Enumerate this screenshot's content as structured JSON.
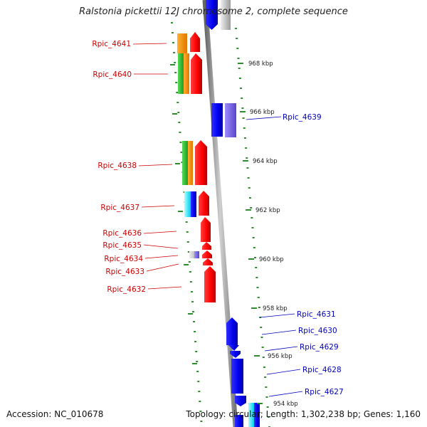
{
  "title": "Ralstonia pickettii 12J chromosome 2, complete sequence",
  "footer": {
    "accession": "Accession: NC_010678",
    "topology": "Topology: circular; Length: 1,302,238 bp; Genes: 1,160"
  },
  "kbp_ticks": [
    "968 kbp",
    "966 kbp",
    "964 kbp",
    "962 kbp",
    "960 kbp",
    "958 kbp",
    "956 kbp",
    "954 kbp"
  ],
  "left_labels": [
    "Rpic_4641",
    "Rpic_4640",
    "Rpic_4638",
    "Rpic_4637",
    "Rpic_4636",
    "Rpic_4635",
    "Rpic_4634",
    "Rpic_4633",
    "Rpic_4632"
  ],
  "right_labels": [
    "Rpic_4639",
    "Rpic_4631",
    "Rpic_4630",
    "Rpic_4629",
    "Rpic_4628",
    "Rpic_4627"
  ],
  "colors": {
    "forward_label": "#cc0000",
    "reverse_label": "#0000bb",
    "tick_green": "#2e8b2e",
    "backbone": "#888888",
    "red": "#ff1010",
    "blue": "#1414f0",
    "orange": "#ff9900",
    "green": "#33cc33",
    "cyan": "#22e5ff",
    "slate": "#7b68ee"
  }
}
